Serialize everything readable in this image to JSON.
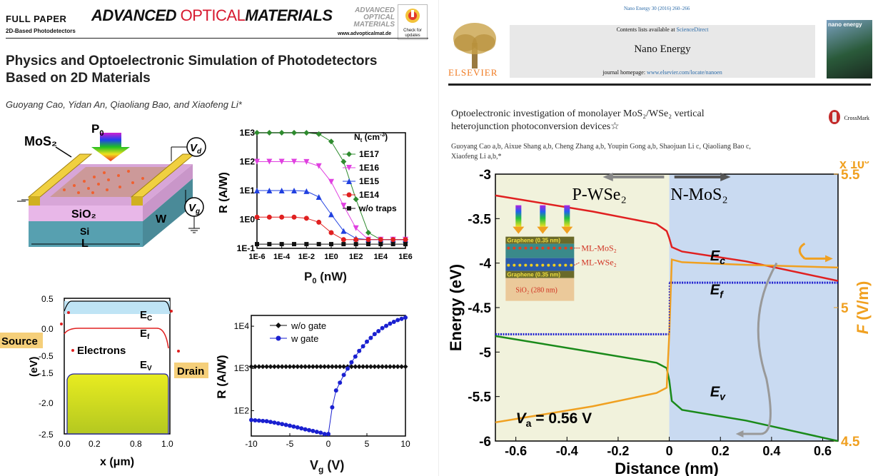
{
  "left": {
    "header": {
      "label": "FULL PAPER",
      "sublabel": "2D-Based Photodetectors",
      "journal_bold1": "ADVANCED",
      "journal_thin": "OPTICAL",
      "journal_bold2": "MATERIALS",
      "journal_logo_lines": [
        "ADVANCED",
        "OPTICAL",
        "MATERIALS"
      ],
      "url": "www.advopticalmat.de",
      "badge": "Check for updates"
    },
    "title_line1": "Physics and Optoelectronic Simulation of Photodetectors",
    "title_line2": "Based on 2D Materials",
    "authors": "Guoyang Cao, Yidan An, Qiaoliang Bao, and Xiaofeng Li*",
    "device": {
      "mos2": "MoS₂",
      "p0": "P",
      "p0_sub": "0",
      "vd": "V",
      "vd_sub": "d",
      "vg": "V",
      "vg_sub": "g",
      "sio2": "SiO₂",
      "si": "Si",
      "w": "W",
      "l": "L"
    },
    "band": {
      "ec": "E",
      "ec_sub": "C",
      "ef": "E",
      "ef_sub": "f",
      "ev": "E",
      "ev_sub": "V",
      "source": "Source",
      "drain": "Drain",
      "electrons": "Electrons",
      "ylabel": "(eV)",
      "xlabel": "x (μm)",
      "yticks": [
        "0.5",
        "0.0",
        "-0.5",
        "-1.5",
        "-2.0",
        "-2.5"
      ],
      "xticks": [
        "0.0",
        "0.2",
        "0.8",
        "1.0"
      ]
    }
  },
  "right": {
    "header": {
      "citation": "Nano Energy 30 (2016) 260–266",
      "contents": "Contents lists available at",
      "sciencedirect": "ScienceDirect",
      "journal": "Nano Energy",
      "homepage_label": "journal homepage:",
      "homepage_url": "www.elsevier.com/locate/nanoen",
      "publisher": "ELSEVIER",
      "cover_title": "nano energy"
    },
    "title_line1": "Optoelectronic investigation of monolayer MoS₂/WSe₂ vertical",
    "title_line2": "heterojunction photoconversion devices☆",
    "crossmark": "CrossMark",
    "authors_line1": "Guoyang Cao a,b, Aixue Shang a,b, Cheng Zhang a,b, Youpin Gong a,b, Shaojuan Li c, Qiaoliang Bao c,",
    "authors_line2": "Xiaofeng Li a,b,*",
    "plot": {
      "p_label": "P-WSe₂",
      "n_label": "N-MoS₂",
      "ec": "E",
      "ec_sub": "c",
      "ef": "E",
      "ef_sub": "f",
      "ev": "E",
      "ev_sub": "v",
      "va": "V",
      "va_sub": "a",
      "va_val": " = 0.56 V",
      "y2_mult": "x 10",
      "y2_exp": "8",
      "inset_graphene_top": "Graphene (0.35 nm)",
      "inset_mos2": "ML-MoS₂",
      "inset_wse2": "ML-WSe₂",
      "inset_graphene_bot": "Graphene (0.35 nm)",
      "inset_sio2": "SiO₂ (280 nm)"
    }
  },
  "chart_data": [
    {
      "type": "line",
      "title": "",
      "xlabel": "P0 (nW)",
      "ylabel": "R (A/W)",
      "xscale": "log",
      "yscale": "log",
      "xlim": [
        1e-06,
        1000000.0
      ],
      "ylim": [
        0.1,
        1000
      ],
      "xticks": [
        "1E-6",
        "1E-4",
        "1E-2",
        "1E0",
        "1E2",
        "1E4",
        "1E6"
      ],
      "yticks": [
        "1E-1",
        "1E0",
        "1E1",
        "1E2",
        "1E3"
      ],
      "legend_title": "Nt (cm⁻³)",
      "legend_title_main": "N",
      "legend_title_sub": "t",
      "legend_title_unit": " (cm",
      "legend_title_exp": "-3",
      "legend_position": "top-right",
      "x": [
        1e-06,
        1e-05,
        0.0001,
        0.001,
        0.01,
        0.1,
        1,
        10,
        100,
        1000,
        10000.0,
        100000.0,
        1000000.0
      ],
      "series": [
        {
          "name": "1E17",
          "color": "#2e8b2e",
          "marker": "diamond",
          "values": [
            1000,
            1000,
            1000,
            1000,
            990,
            900,
            500,
            100,
            5,
            0.35,
            0.2,
            0.2,
            0.2
          ]
        },
        {
          "name": "1E16",
          "color": "#e040e0",
          "marker": "tri-down",
          "values": [
            100,
            100,
            100,
            100,
            98,
            70,
            20,
            3,
            0.5,
            0.2,
            0.2,
            0.2,
            0.2
          ]
        },
        {
          "name": "1E15",
          "color": "#2040e0",
          "marker": "tri-up",
          "values": [
            10,
            10,
            10,
            10,
            9.5,
            6,
            1.5,
            0.4,
            0.22,
            0.2,
            0.2,
            0.2,
            0.2
          ]
        },
        {
          "name": "1E14",
          "color": "#e02020",
          "marker": "circle",
          "values": [
            1.2,
            1.2,
            1.2,
            1.2,
            1.1,
            0.8,
            0.35,
            0.2,
            0.2,
            0.2,
            0.2,
            0.2,
            0.2
          ]
        },
        {
          "name": "w/o traps",
          "color": "#111111",
          "marker": "square",
          "values": [
            0.14,
            0.14,
            0.14,
            0.14,
            0.14,
            0.14,
            0.14,
            0.14,
            0.14,
            0.14,
            0.14,
            0.14,
            0.14
          ]
        }
      ]
    },
    {
      "type": "scatter",
      "title": "",
      "xlabel": "Vg (V)",
      "ylabel": "R (A/W)",
      "yscale": "log",
      "xlim": [
        -10,
        10
      ],
      "ylim": [
        25,
        18000
      ],
      "xticks": [
        "-10",
        "-5",
        "0",
        "5",
        "10"
      ],
      "yticks": [
        "1E2",
        "1E3",
        "1E4"
      ],
      "legend_position": "top-left",
      "x": [
        -10,
        -9,
        -8,
        -7,
        -6,
        -5,
        -4,
        -3,
        -2,
        -1,
        -0.5,
        0,
        0.5,
        1,
        2,
        3,
        4,
        5,
        6,
        7,
        8,
        9,
        10
      ],
      "series": [
        {
          "name": "w/o gate",
          "color": "#111111",
          "marker": "diamond",
          "values": [
            1100,
            1100,
            1100,
            1100,
            1100,
            1100,
            1100,
            1100,
            1100,
            1100,
            1100,
            1100,
            1100,
            1100,
            1100,
            1100,
            1100,
            1100,
            1100,
            1100,
            1100,
            1100,
            1100
          ]
        },
        {
          "name": "w gate",
          "color": "#1a20d0",
          "marker": "circle",
          "values": [
            60,
            58,
            56,
            52,
            48,
            44,
            40,
            36,
            33,
            30,
            28,
            28,
            120,
            300,
            700,
            1400,
            2600,
            4300,
            6500,
            9000,
            11500,
            14000,
            16000
          ]
        }
      ]
    },
    {
      "type": "line",
      "title": "",
      "xlabel": "Distance (nm)",
      "ylabel": "Energy (eV)",
      "y2label": "F (V/m)",
      "y2_label_main": "F",
      "y2_label_unit": " (V/m)",
      "xlim": [
        -0.68,
        0.66
      ],
      "ylim": [
        -6,
        -3
      ],
      "y2lim": [
        450000000.0,
        550000000.0
      ],
      "xticks": [
        "-0.6",
        "-0.4",
        "-0.2",
        "0",
        "0.2",
        "0.4",
        "0.6"
      ],
      "yticks": [
        "-3",
        "-3.5",
        "-4",
        "-4.5",
        "-5",
        "-5.5",
        "-6"
      ],
      "y2ticks": [
        "4.5",
        "5",
        "5.5"
      ],
      "x": [
        -0.68,
        -0.3,
        -0.05,
        -0.01,
        0.0,
        0.01,
        0.05,
        0.3,
        0.66
      ],
      "series": [
        {
          "name": "Ec",
          "color": "#e02020",
          "axis": "left",
          "values": [
            -3.24,
            -3.42,
            -3.56,
            -3.64,
            -3.72,
            -3.82,
            -3.87,
            -3.98,
            -4.2
          ]
        },
        {
          "name": "Ev",
          "color": "#1a8a1a",
          "axis": "left",
          "values": [
            -4.82,
            -5.0,
            -5.12,
            -5.18,
            -5.32,
            -5.55,
            -5.65,
            -5.77,
            -6.0
          ]
        },
        {
          "name": "Ef (P side)",
          "color": "#2020d0",
          "axis": "left",
          "values": [
            -4.8,
            -4.8,
            -4.8,
            -4.8,
            -4.8,
            null,
            null,
            null,
            null
          ]
        },
        {
          "name": "Ef (N side)",
          "color": "#2020d0",
          "axis": "left",
          "values": [
            null,
            null,
            null,
            null,
            -4.22,
            -4.22,
            -4.22,
            -4.22,
            -4.22
          ]
        },
        {
          "name": "F",
          "color": "#f0a020",
          "axis": "right",
          "values": [
            457000000.0,
            463000000.0,
            468000000.0,
            470000000.0,
            490000000.0,
            518000000.0,
            517000000.0,
            516000000.0,
            515000000.0
          ]
        }
      ]
    }
  ]
}
